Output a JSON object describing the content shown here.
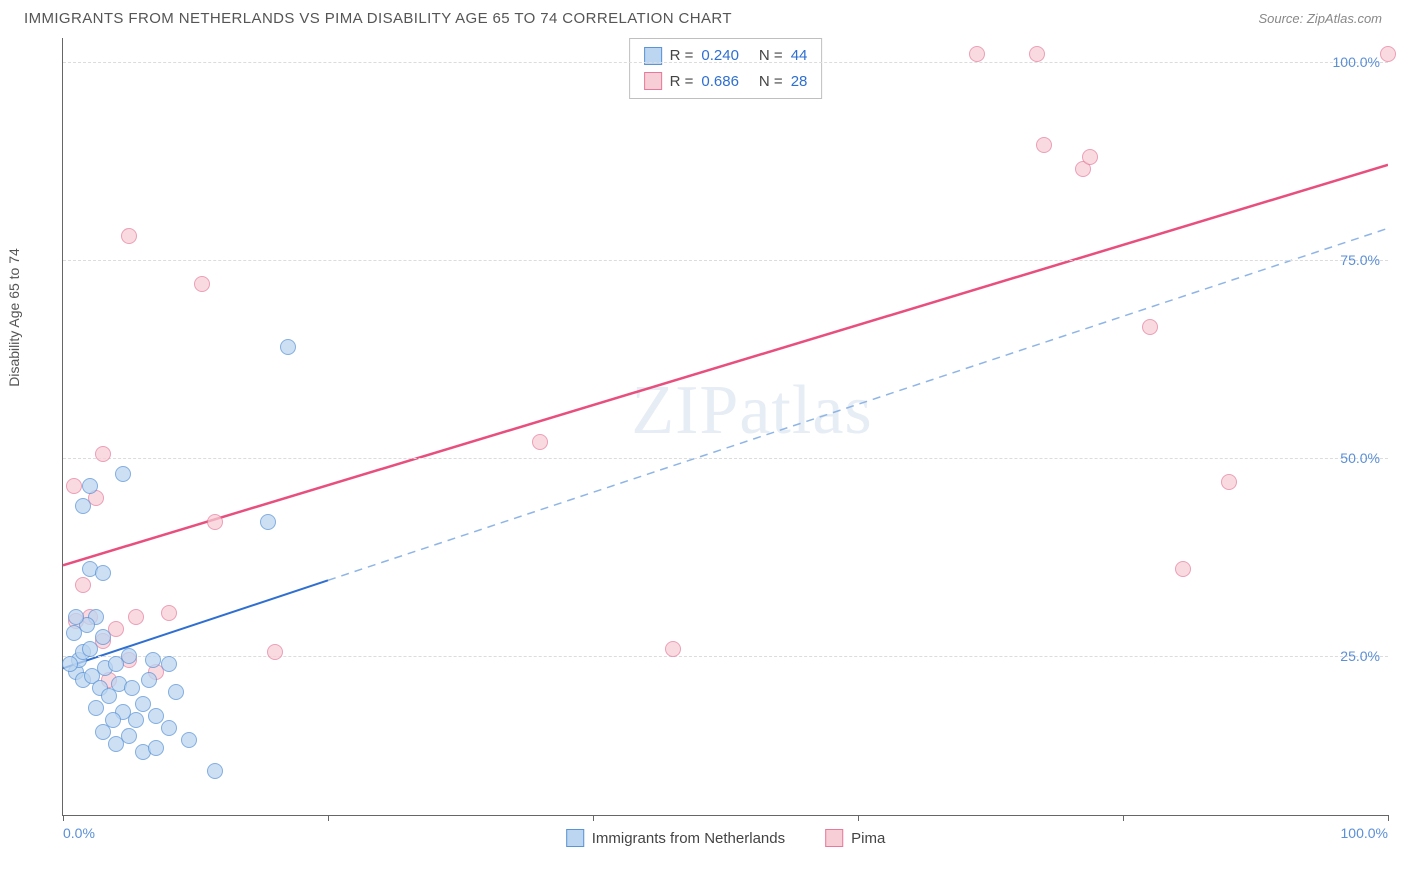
{
  "header": {
    "title": "IMMIGRANTS FROM NETHERLANDS VS PIMA DISABILITY AGE 65 TO 74 CORRELATION CHART",
    "source": "Source: ZipAtlas.com"
  },
  "chart": {
    "type": "scatter",
    "ylabel": "Disability Age 65 to 74",
    "xlim": [
      0,
      100
    ],
    "ylim": [
      5,
      103
    ],
    "x_ticks": [
      0,
      20,
      40,
      60,
      80,
      100
    ],
    "x_tick_labels_show": [
      0,
      100
    ],
    "x_tick_label_format": [
      "0.0%",
      "100.0%"
    ],
    "y_ticks": [
      25,
      50,
      75,
      100
    ],
    "y_tick_labels": [
      "25.0%",
      "50.0%",
      "75.0%",
      "100.0%"
    ],
    "background_color": "#ffffff",
    "grid_color": "#dcdcdc",
    "axis_color": "#666666",
    "tick_label_color": "#5b8fd6",
    "point_radius": 8,
    "point_stroke_width": 1.5,
    "series": [
      {
        "id": "netherlands",
        "label": "Immigrants from Netherlands",
        "fill_color": "#bcd5f0",
        "stroke_color": "#5a93d6",
        "fill_opacity": 0.75,
        "R": "0.240",
        "N": "44",
        "trend": {
          "x1": 0,
          "y1": 23.5,
          "x2": 20,
          "y2": 34.6,
          "solid_until_x": 20,
          "dashed_to_x": 100,
          "color_solid": "#2f6fd0",
          "color_dashed": "#8fb5e6",
          "width": 2
        },
        "points": [
          [
            1.0,
            23.0
          ],
          [
            1.2,
            24.5
          ],
          [
            1.5,
            22.0
          ],
          [
            1.5,
            25.5
          ],
          [
            0.5,
            24.0
          ],
          [
            2.0,
            26.0
          ],
          [
            2.2,
            22.5
          ],
          [
            2.5,
            30.0
          ],
          [
            2.8,
            21.0
          ],
          [
            3.0,
            27.5
          ],
          [
            3.2,
            23.5
          ],
          [
            3.5,
            20.0
          ],
          [
            0.8,
            28.0
          ],
          [
            1.8,
            29.0
          ],
          [
            4.0,
            24.0
          ],
          [
            4.2,
            21.5
          ],
          [
            4.5,
            18.0
          ],
          [
            5.0,
            25.0
          ],
          [
            5.5,
            17.0
          ],
          [
            6.0,
            19.0
          ],
          [
            6.5,
            22.0
          ],
          [
            3.0,
            15.5
          ],
          [
            4.0,
            14.0
          ],
          [
            5.0,
            15.0
          ],
          [
            7.0,
            17.5
          ],
          [
            8.0,
            16.0
          ],
          [
            8.5,
            20.5
          ],
          [
            9.5,
            14.5
          ],
          [
            6.0,
            13.0
          ],
          [
            7.0,
            13.5
          ],
          [
            2.0,
            36.0
          ],
          [
            1.0,
            30.0
          ],
          [
            2.5,
            18.5
          ],
          [
            3.8,
            17.0
          ],
          [
            5.2,
            21.0
          ],
          [
            6.8,
            24.5
          ],
          [
            8.0,
            24.0
          ],
          [
            1.5,
            44.0
          ],
          [
            2.0,
            46.5
          ],
          [
            4.5,
            48.0
          ],
          [
            3.0,
            35.5
          ],
          [
            11.5,
            10.5
          ],
          [
            15.5,
            42.0
          ],
          [
            17.0,
            64.0
          ]
        ]
      },
      {
        "id": "pima",
        "label": "Pima",
        "fill_color": "#f7cdd6",
        "stroke_color": "#e77a9b",
        "fill_opacity": 0.72,
        "R": "0.686",
        "N": "28",
        "trend": {
          "x1": 0,
          "y1": 36.5,
          "x2": 100,
          "y2": 87,
          "color_solid": "#e84f7e",
          "width": 2.5
        },
        "points": [
          [
            1.0,
            29.5
          ],
          [
            2.0,
            30.0
          ],
          [
            3.0,
            27.0
          ],
          [
            4.0,
            28.5
          ],
          [
            5.5,
            30.0
          ],
          [
            7.0,
            23.0
          ],
          [
            8.0,
            30.5
          ],
          [
            3.5,
            22.0
          ],
          [
            5.0,
            24.5
          ],
          [
            1.5,
            34.0
          ],
          [
            2.5,
            45.0
          ],
          [
            0.8,
            46.5
          ],
          [
            3.0,
            50.5
          ],
          [
            11.5,
            42.0
          ],
          [
            16.0,
            25.5
          ],
          [
            5.0,
            78.0
          ],
          [
            10.5,
            72.0
          ],
          [
            36.0,
            52.0
          ],
          [
            46.0,
            26.0
          ],
          [
            69.0,
            101.0
          ],
          [
            73.5,
            101.0
          ],
          [
            74.0,
            89.5
          ],
          [
            77.0,
            86.5
          ],
          [
            77.5,
            88.0
          ],
          [
            82.0,
            66.5
          ],
          [
            84.5,
            36.0
          ],
          [
            88.0,
            47.0
          ],
          [
            100.0,
            101.0
          ]
        ]
      }
    ],
    "watermark": "ZIPatlas"
  },
  "legend_bottom": {
    "items": [
      {
        "swatch_fill": "#bcd5f0",
        "swatch_stroke": "#5a93d6",
        "label": "Immigrants from Netherlands"
      },
      {
        "swatch_fill": "#f7cdd6",
        "swatch_stroke": "#e77a9b",
        "label": "Pima"
      }
    ]
  }
}
